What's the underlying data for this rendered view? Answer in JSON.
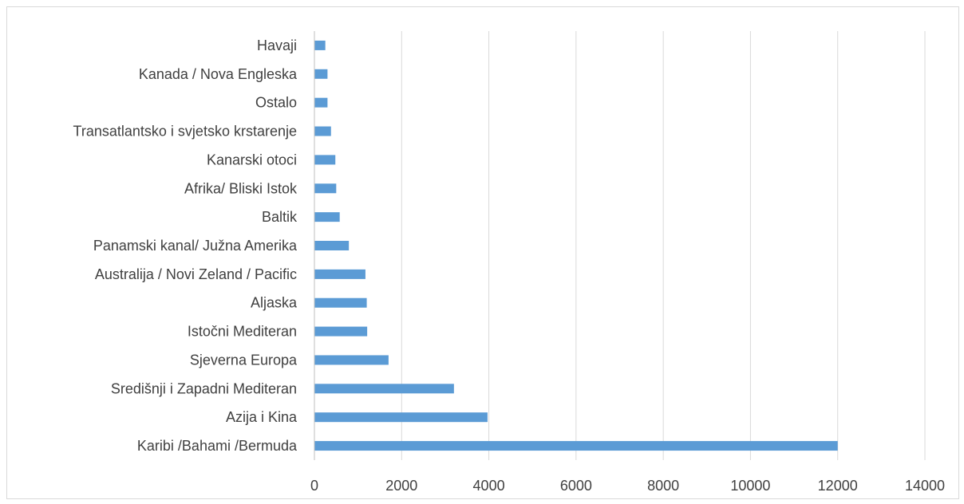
{
  "chart_data": {
    "type": "bar",
    "orientation": "horizontal",
    "title": "",
    "xlabel": "",
    "ylabel": "",
    "categories": [
      "Havaji",
      "Kanada / Nova Engleska",
      "Ostalo",
      "Transatlantsko i svjetsko krstarenje",
      "Kanarski otoci",
      "Afrika/ Bliski Istok",
      "Baltik",
      "Panamski kanal/ Južna Amerika",
      "Australija / Novi Zeland / Pacific",
      "Aljaska",
      "Istočni Mediteran ",
      "Sjeverna Europa",
      "Središnji i Zapadni Mediteran",
      "Azija i Kina",
      "Karibi /Bahami /Bermuda"
    ],
    "values": [
      250,
      300,
      300,
      380,
      480,
      500,
      580,
      790,
      1170,
      1200,
      1210,
      1700,
      3200,
      3970,
      12000
    ],
    "xlim": [
      0,
      14000
    ],
    "x_ticks": [
      "0",
      "2000",
      "4000",
      "6000",
      "8000",
      "10000",
      "12000",
      "14000"
    ],
    "grid": true,
    "legend": "none",
    "bar_color": "#5b9bd5"
  }
}
